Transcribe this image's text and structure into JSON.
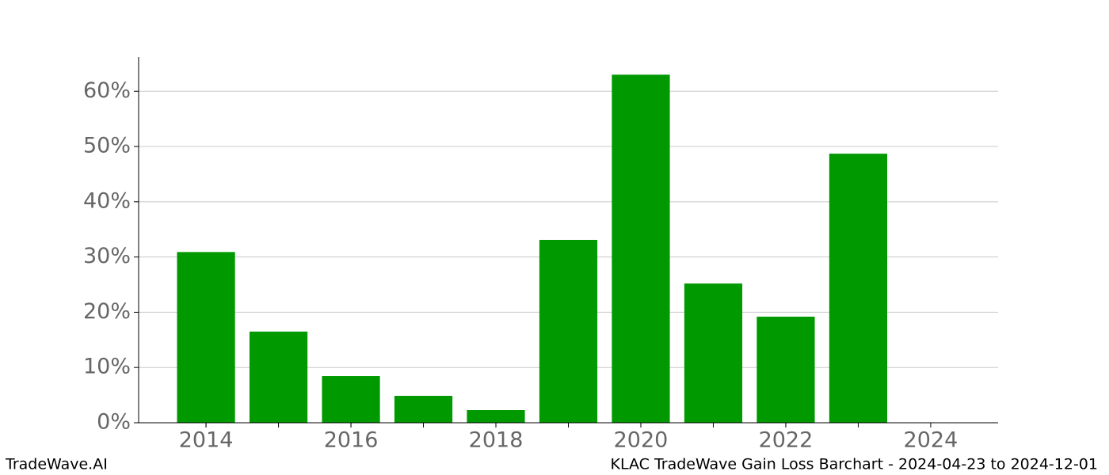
{
  "chart_data": {
    "type": "bar",
    "title": "KLAC TradeWave Gain Loss Barchart - 2024-04-23 to 2024-12-01",
    "brand": "TradeWave.AI",
    "x": [
      2014,
      2015,
      2016,
      2017,
      2018,
      2019,
      2020,
      2021,
      2022,
      2023
    ],
    "values": [
      30.9,
      16.5,
      8.45,
      4.87,
      2.29,
      33.1,
      63.0,
      25.2,
      19.2,
      48.7
    ],
    "color": "#009900",
    "xlim": [
      2013.07,
      2024.93
    ],
    "xticks": [
      2014,
      2016,
      2018,
      2020,
      2022,
      2024
    ],
    "ylim": [
      0,
      66.2
    ],
    "yticks": [
      {
        "value": 0,
        "label": "0%"
      },
      {
        "value": 10,
        "label": "10%"
      },
      {
        "value": 20,
        "label": "20%"
      },
      {
        "value": 30,
        "label": "30%"
      },
      {
        "value": 40,
        "label": "40%"
      },
      {
        "value": 50,
        "label": "50%"
      },
      {
        "value": 60,
        "label": "60%"
      }
    ],
    "grid": true
  }
}
